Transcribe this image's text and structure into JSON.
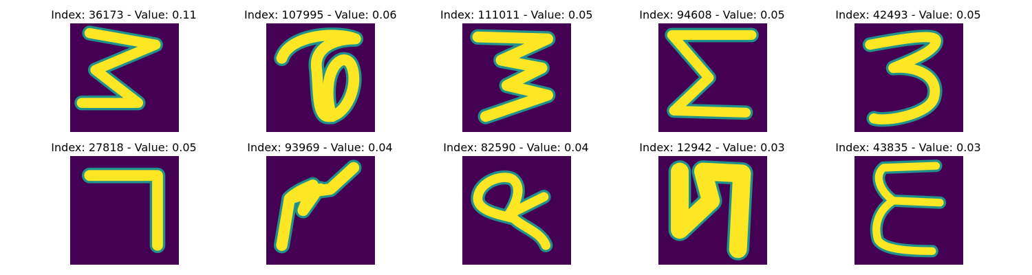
{
  "colors": {
    "background": "#440154",
    "stroke": "#fde725",
    "edge": "#21918c"
  },
  "panels": [
    {
      "title": "Index: 36173 - Value: 0.11",
      "image": "handwritten digit three (sharp, zigzag)"
    },
    {
      "title": "Index: 107995 - Value: 0.06",
      "image": "handwritten curled loop glyph"
    },
    {
      "title": "Index: 111011 - Value: 0.05",
      "image": "handwritten digit three (sharp, zigzag)"
    },
    {
      "title": "Index: 94608 - Value: 0.05",
      "image": "handwritten sigma-like glyph"
    },
    {
      "title": "Index: 42493 - Value: 0.05",
      "image": "handwritten digit three (rounded)"
    },
    {
      "title": "Index: 27818 - Value: 0.05",
      "image": "handwritten digit seven"
    },
    {
      "title": "Index: 93969 - Value: 0.04",
      "image": "handwritten angular scribble glyph"
    },
    {
      "title": "Index: 82590 - Value: 0.04",
      "image": "handwritten looped glyph with tail"
    },
    {
      "title": "Index: 12942 - Value: 0.03",
      "image": "handwritten thick N-like glyph"
    },
    {
      "title": "Index: 43835 - Value: 0.03",
      "image": "handwritten epsilon-like glyph"
    }
  ]
}
